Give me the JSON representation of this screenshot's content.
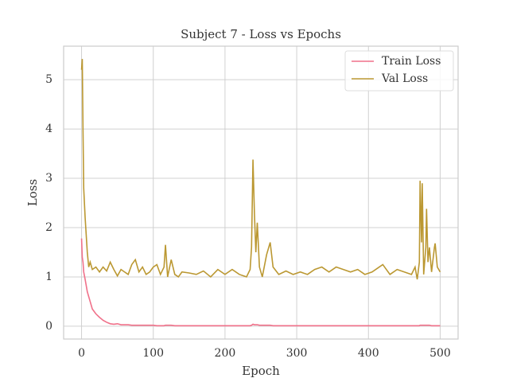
{
  "chart_data": {
    "type": "line",
    "title": "Subject 7 - Loss vs Epochs",
    "xlabel": "Epoch",
    "ylabel": "Loss",
    "x": [
      0,
      1,
      2,
      3,
      5,
      8,
      10,
      12,
      15,
      20,
      25,
      30,
      35,
      40,
      45,
      50,
      55,
      60,
      65,
      70,
      75,
      80,
      85,
      90,
      95,
      100,
      105,
      110,
      115,
      117,
      120,
      125,
      130,
      135,
      140,
      150,
      160,
      170,
      180,
      190,
      200,
      210,
      220,
      230,
      235,
      237,
      239,
      241,
      243,
      245,
      248,
      252,
      258,
      263,
      267,
      275,
      285,
      295,
      305,
      315,
      325,
      335,
      345,
      355,
      365,
      375,
      385,
      395,
      405,
      415,
      420,
      430,
      440,
      450,
      460,
      465,
      468,
      471,
      472,
      474,
      475,
      477,
      480,
      481,
      483,
      485,
      488,
      492,
      493,
      496,
      500
    ],
    "series": [
      {
        "name": "Train Loss",
        "color": "#f0718a",
        "values": [
          1.78,
          1.4,
          1.3,
          1.1,
          0.95,
          0.7,
          0.6,
          0.5,
          0.35,
          0.25,
          0.18,
          0.12,
          0.08,
          0.05,
          0.04,
          0.05,
          0.03,
          0.03,
          0.03,
          0.02,
          0.02,
          0.02,
          0.02,
          0.02,
          0.02,
          0.02,
          0.01,
          0.01,
          0.01,
          0.02,
          0.02,
          0.02,
          0.01,
          0.01,
          0.01,
          0.01,
          0.01,
          0.01,
          0.01,
          0.01,
          0.01,
          0.01,
          0.01,
          0.01,
          0.01,
          0.02,
          0.04,
          0.03,
          0.03,
          0.03,
          0.02,
          0.02,
          0.02,
          0.02,
          0.01,
          0.01,
          0.01,
          0.01,
          0.01,
          0.01,
          0.01,
          0.01,
          0.01,
          0.01,
          0.01,
          0.01,
          0.01,
          0.01,
          0.01,
          0.01,
          0.01,
          0.01,
          0.01,
          0.01,
          0.01,
          0.01,
          0.01,
          0.01,
          0.02,
          0.02,
          0.02,
          0.02,
          0.02,
          0.02,
          0.02,
          0.02,
          0.01,
          0.01,
          0.01,
          0.01,
          0.01
        ]
      },
      {
        "name": "Val Loss",
        "color": "#bb9832",
        "values": [
          5.2,
          5.42,
          4.0,
          2.8,
          2.2,
          1.5,
          1.2,
          1.3,
          1.15,
          1.2,
          1.1,
          1.2,
          1.12,
          1.3,
          1.15,
          1.02,
          1.15,
          1.1,
          1.05,
          1.25,
          1.35,
          1.1,
          1.2,
          1.05,
          1.1,
          1.2,
          1.25,
          1.05,
          1.2,
          1.65,
          1.0,
          1.35,
          1.05,
          1.0,
          1.1,
          1.08,
          1.05,
          1.12,
          1.0,
          1.15,
          1.05,
          1.15,
          1.05,
          1.0,
          1.15,
          1.6,
          3.38,
          2.3,
          1.5,
          2.1,
          1.2,
          1.0,
          1.45,
          1.7,
          1.2,
          1.05,
          1.12,
          1.05,
          1.1,
          1.05,
          1.15,
          1.2,
          1.1,
          1.2,
          1.15,
          1.1,
          1.15,
          1.05,
          1.1,
          1.2,
          1.25,
          1.05,
          1.15,
          1.1,
          1.05,
          1.2,
          0.95,
          1.3,
          2.95,
          1.7,
          2.9,
          1.05,
          1.6,
          2.38,
          1.3,
          1.6,
          1.1,
          1.6,
          1.68,
          1.2,
          1.1
        ]
      }
    ],
    "xlim": [
      -25,
      525
    ],
    "ylim": [
      -0.26,
      5.68
    ],
    "xticks": [
      0,
      100,
      200,
      300,
      400,
      500
    ],
    "yticks": [
      0,
      1,
      2,
      3,
      4,
      5
    ],
    "grid": true,
    "legend": "upper right"
  }
}
